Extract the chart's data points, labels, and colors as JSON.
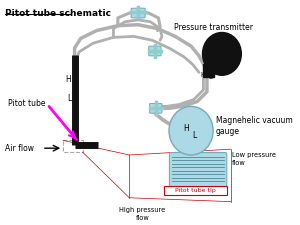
{
  "title": "Pitot tube schematic",
  "pipe_color": "#b0b0b0",
  "pipe_lw": 2.5,
  "tube_fill": "#add8e6",
  "black": "#111111",
  "cyan_fitting": "#8ecece",
  "label_pitot": "Pitot tube",
  "label_airflow": "Air flow",
  "label_pressure_tx": "Pressure transmitter",
  "label_magnehelic": "Magnehelic vacuum\ngauge",
  "label_high_p": "High pressure\nflow",
  "label_low_p": "Low pressure\nflow",
  "label_tip": "Pitot tube tip",
  "red": "#cc0000",
  "magenta": "#ff00ff"
}
